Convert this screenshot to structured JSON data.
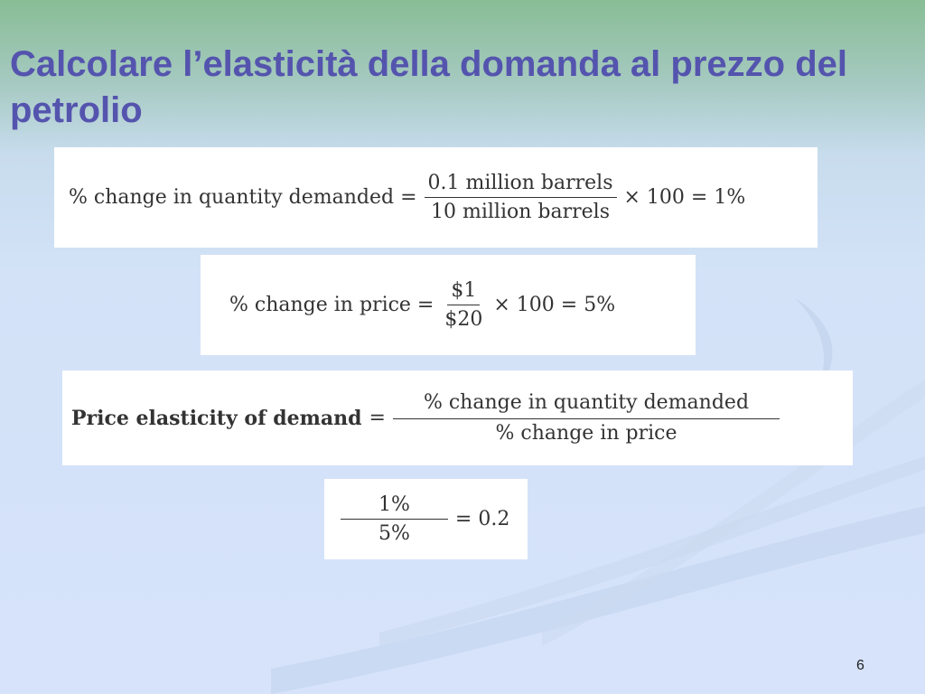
{
  "slide": {
    "title": "Calcolare l’elasticità della domanda al prezzo del petrolio",
    "page_number": "6"
  },
  "equations": {
    "quantity_change": {
      "label": "% change in quantity demanded =",
      "numerator": "0.1 million barrels",
      "denominator": "10 million barrels",
      "result": "× 100 = 1%"
    },
    "price_change": {
      "label": "% change in price =",
      "numerator": "$1",
      "denominator": "$20",
      "result": "× 100 = 5%"
    },
    "elasticity_definition": {
      "label": "Price elasticity of demand",
      "equals": "=",
      "numerator": "% change in quantity demanded",
      "denominator": "% change in price"
    },
    "elasticity_result": {
      "numerator": "1%",
      "denominator": "5%",
      "result": "= 0.2"
    }
  },
  "colors": {
    "title": "#5454ae",
    "background_top": "#88bd95",
    "background_bottom": "#d6e3fb"
  }
}
